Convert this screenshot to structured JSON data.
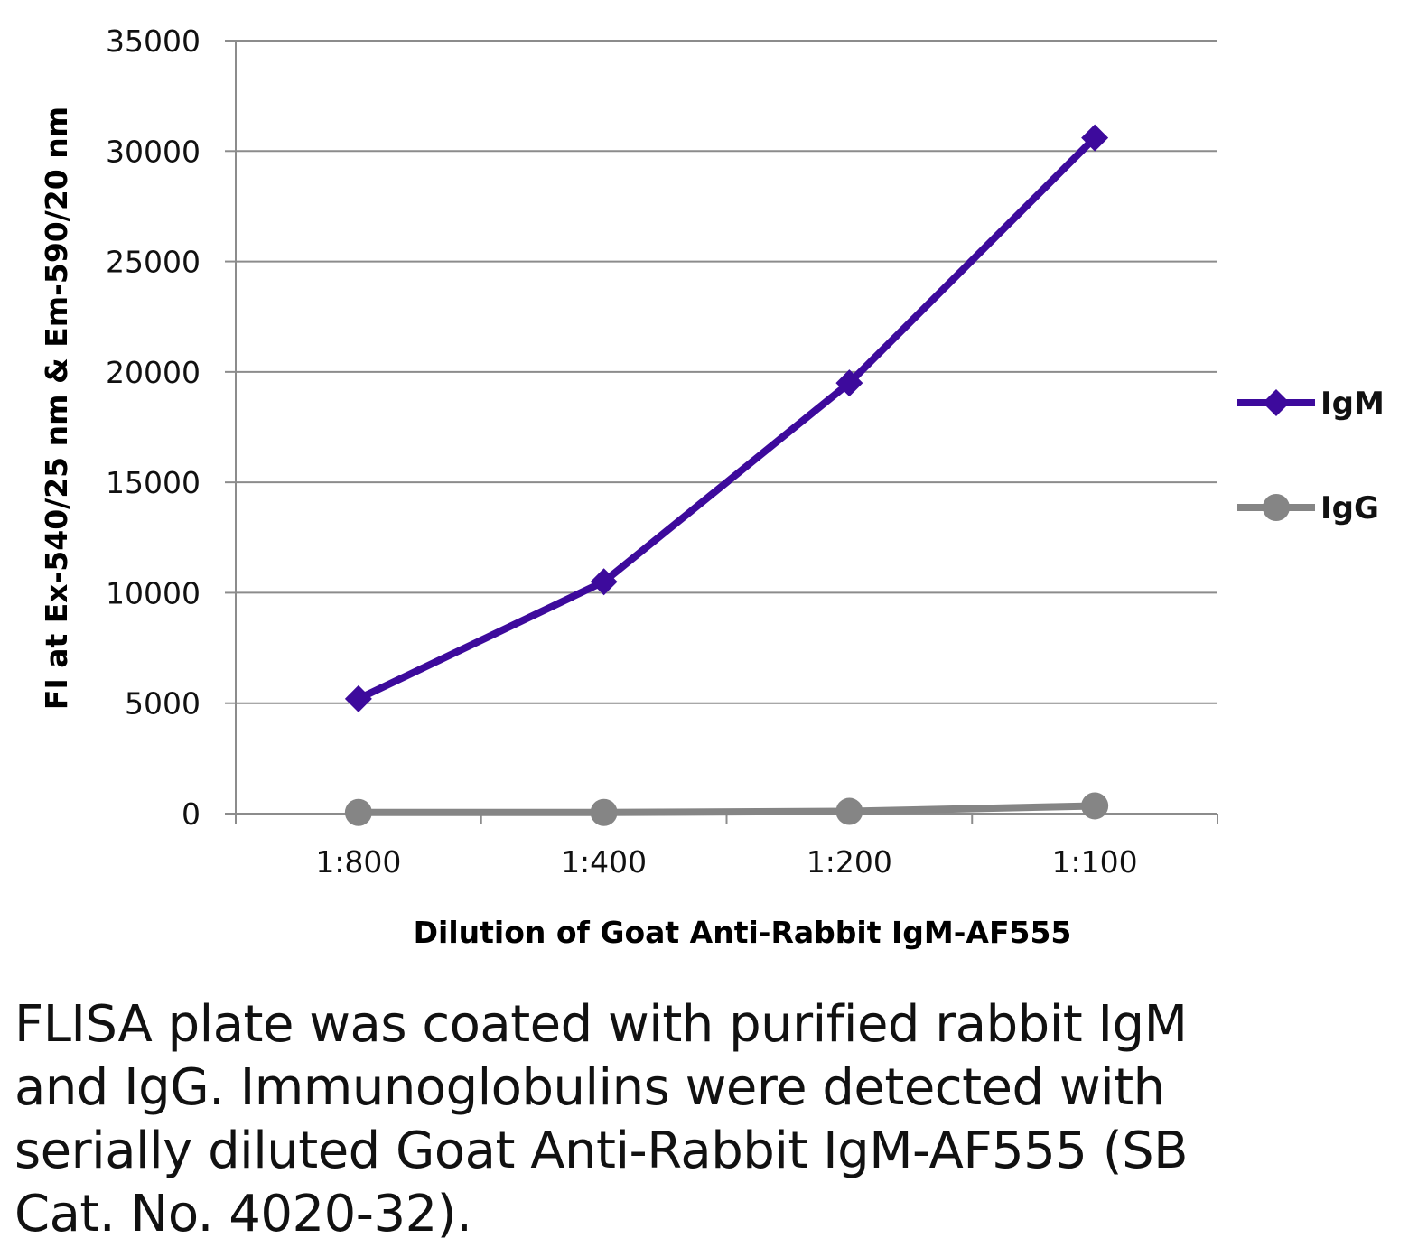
{
  "chart_data": {
    "type": "line",
    "title": "",
    "xlabel": "Dilution of Goat Anti-Rabbit IgM-AF555",
    "ylabel": "FI at Ex-540/25 nm & Em-590/20 nm",
    "categories": [
      "1:800",
      "1:400",
      "1:200",
      "1:100"
    ],
    "ylim": [
      0,
      35000
    ],
    "yticks": [
      0,
      5000,
      10000,
      15000,
      20000,
      25000,
      30000,
      35000
    ],
    "grid": true,
    "legend_position": "right",
    "series": [
      {
        "name": "IgM",
        "marker": "diamond",
        "color": "#3d0a9c",
        "values": [
          5200,
          10500,
          19500,
          30600
        ]
      },
      {
        "name": "IgG",
        "marker": "circle",
        "color": "#858585",
        "values": [
          50,
          50,
          100,
          350
        ]
      }
    ]
  },
  "caption": "FLISA plate was coated with purified rabbit IgM and IgG.  Immunoglobulins were detected with serially diluted Goat Anti-Rabbit IgM-AF555 (SB Cat. No. 4020-32)."
}
